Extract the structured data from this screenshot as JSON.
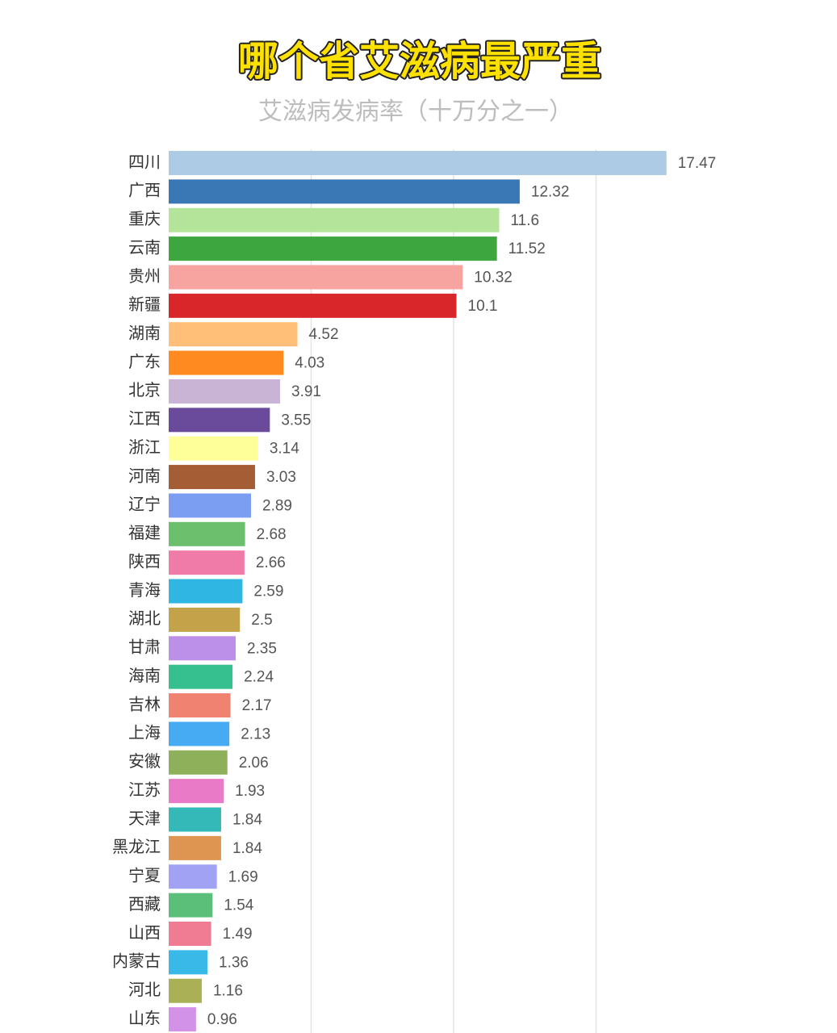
{
  "chart_data": {
    "type": "hbar",
    "title": "哪个省艾滋病最严重",
    "subtitle": "艾滋病发病率（十万分之一）",
    "categories": [
      "四川",
      "广西",
      "重庆",
      "云南",
      "贵州",
      "新疆",
      "湖南",
      "广东",
      "北京",
      "江西",
      "浙江",
      "河南",
      "辽宁",
      "福建",
      "陕西",
      "青海",
      "湖北",
      "甘肃",
      "海南",
      "吉林",
      "上海",
      "安徽",
      "江苏",
      "天津",
      "黑龙江",
      "宁夏",
      "西藏",
      "山西",
      "内蒙古",
      "河北",
      "山东"
    ],
    "values": [
      17.47,
      12.32,
      11.6,
      11.52,
      10.32,
      10.1,
      4.52,
      4.03,
      3.91,
      3.55,
      3.14,
      3.03,
      2.89,
      2.68,
      2.66,
      2.59,
      2.5,
      2.35,
      2.24,
      2.17,
      2.13,
      2.06,
      1.93,
      1.84,
      1.84,
      1.69,
      1.54,
      1.49,
      1.36,
      1.16,
      0.96
    ],
    "colors": [
      "#aecbe6",
      "#3a78b5",
      "#b3e49a",
      "#3ea63e",
      "#f7a3a0",
      "#d9262b",
      "#ffbf78",
      "#ff8a1f",
      "#c9b4d6",
      "#6a4a9b",
      "#ffff99",
      "#a55d36",
      "#7b9ef2",
      "#6cbf6c",
      "#f07aa8",
      "#2fb6e2",
      "#c4a24a",
      "#bc90e8",
      "#36c08f",
      "#f08272",
      "#46abf2",
      "#8fb05a",
      "#e87ac8",
      "#35b8b8",
      "#de9552",
      "#a2a2f5",
      "#5bbf7a",
      "#ef7c92",
      "#39b9e8",
      "#a9b056",
      "#d192e8"
    ],
    "xlim": [
      0,
      20
    ],
    "gridlines": [
      5,
      10,
      15
    ]
  }
}
